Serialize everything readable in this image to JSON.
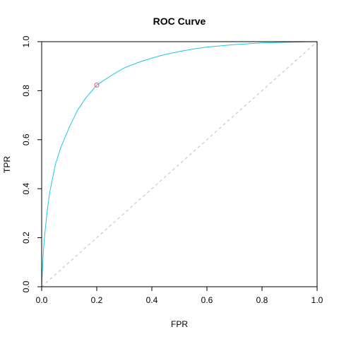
{
  "chart_data": {
    "type": "line",
    "title": "ROC Curve",
    "xlabel": "FPR",
    "ylabel": "TPR",
    "xlim": [
      0,
      1
    ],
    "ylim": [
      0,
      1
    ],
    "xticks": [
      "0.0",
      "0.2",
      "0.4",
      "0.6",
      "0.8",
      "1.0"
    ],
    "yticks": [
      "0.0",
      "0.2",
      "0.4",
      "0.6",
      "0.8",
      "1.0"
    ],
    "grid": false,
    "legend": "none",
    "series": [
      {
        "role": "roc-curve",
        "color": "#1EC8E6",
        "x": [
          0,
          0.005,
          0.01,
          0.02,
          0.03,
          0.05,
          0.07,
          0.1,
          0.13,
          0.16,
          0.2,
          0.25,
          0.3,
          0.35,
          0.4,
          0.45,
          0.5,
          0.55,
          0.6,
          0.7,
          0.8,
          0.9,
          1.0
        ],
        "y": [
          0,
          0.12,
          0.2,
          0.31,
          0.39,
          0.5,
          0.57,
          0.65,
          0.72,
          0.77,
          0.823,
          0.86,
          0.893,
          0.915,
          0.933,
          0.948,
          0.96,
          0.97,
          0.978,
          0.988,
          0.995,
          0.998,
          1.0
        ]
      },
      {
        "role": "chance-line",
        "color": "#BEBEBE",
        "x": [
          0,
          1
        ],
        "y": [
          0,
          1
        ]
      }
    ],
    "annotations": [
      {
        "role": "operating-point",
        "x": 0.2,
        "y": 0.823,
        "color": "#DF536B"
      }
    ]
  }
}
